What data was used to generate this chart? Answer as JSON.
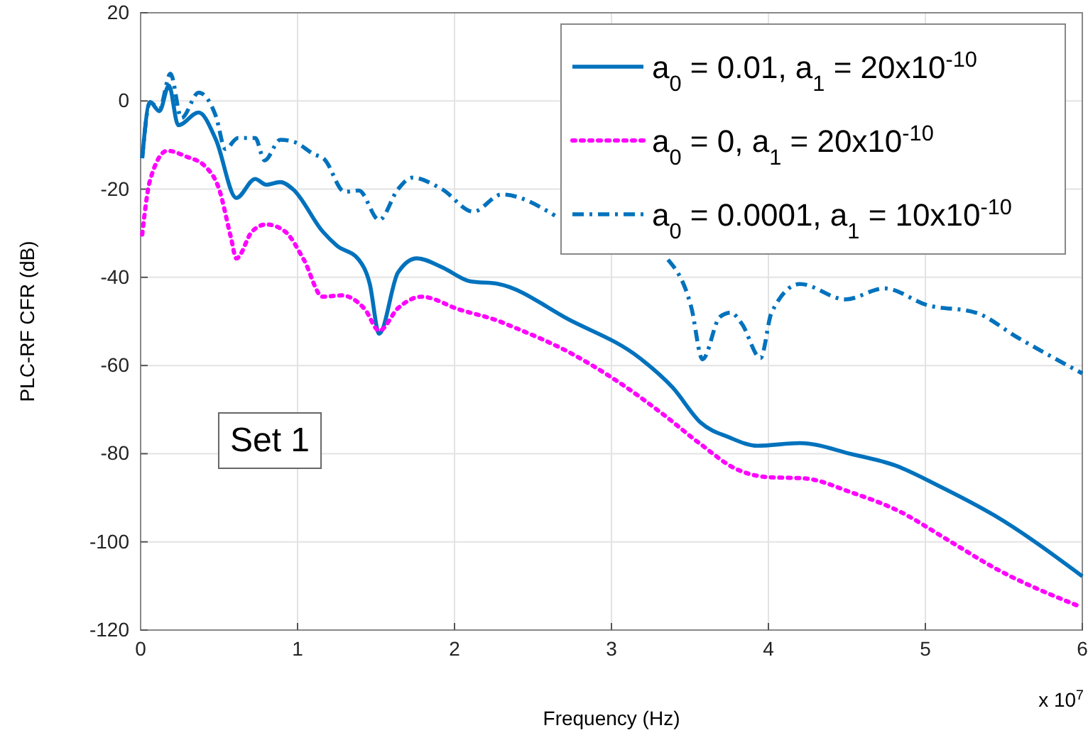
{
  "chart_data": {
    "type": "line",
    "xlabel": "Frequency (Hz)",
    "ylabel": "PLC-RF CFR (dB)",
    "xlim": [
      0,
      6
    ],
    "ylim": [
      -120,
      20
    ],
    "xticks": [
      0,
      1,
      2,
      3,
      4,
      5,
      6
    ],
    "yticks": [
      -120,
      -100,
      -80,
      -60,
      -40,
      -20,
      0,
      20
    ],
    "grid": true,
    "legend": "top right",
    "annotations": [
      "Set 1",
      "x 10$^{7}$"
    ],
    "series": [
      {
        "name": "a$_{0}$ = 0.01, a$_{1}$ = 20x10$^{-10}$",
        "color": "#0072bd",
        "line_style": "solid",
        "x": [
          0.01,
          0.06,
          0.12,
          0.18,
          0.24,
          0.37,
          0.48,
          0.61,
          0.73,
          0.8,
          0.89,
          0.97,
          1.16,
          1.25,
          1.39,
          1.46,
          1.52,
          1.64,
          1.76,
          1.92,
          2.1,
          2.28,
          2.73,
          3.18,
          3.39,
          3.57,
          3.75,
          3.93,
          4.2,
          4.53,
          4.81,
          5.08,
          5.44,
          6.0
        ],
        "values": [
          -13,
          -0.3,
          -2.3,
          3.5,
          -5.5,
          -2.6,
          -8.8,
          -22,
          -17.7,
          -19,
          -18.4,
          -20,
          -29.6,
          -32.8,
          -36,
          -41.5,
          -52.8,
          -38.9,
          -35.7,
          -37.7,
          -40.9,
          -41.5,
          -49.6,
          -58.3,
          -65,
          -73,
          -76.3,
          -78.2,
          -77.6,
          -80.1,
          -82.7,
          -87.2,
          -94,
          -107.8
        ]
      },
      {
        "name": "a$_{0}$ = 0, a$_{1}$ = 20x10$^{-10}$",
        "color": "#ff00ff",
        "line_style": "dotted",
        "x": [
          0.01,
          0.06,
          0.17,
          0.29,
          0.41,
          0.5,
          0.575,
          0.61,
          0.71,
          0.8,
          0.92,
          1.04,
          1.16,
          1.28,
          1.43,
          1.52,
          1.64,
          1.79,
          2.03,
          2.28,
          2.37,
          2.73,
          3.03,
          3.33,
          3.57,
          3.79,
          3.99,
          4.23,
          4.53,
          4.83,
          5.14,
          5.44,
          5.98
        ],
        "values": [
          -30.3,
          -18,
          -11.3,
          -12.6,
          -14.8,
          -20,
          -30.9,
          -35.7,
          -29.6,
          -28,
          -29.6,
          -36,
          -44.4,
          -44.1,
          -47.3,
          -52.1,
          -47,
          -44.4,
          -47.3,
          -49.9,
          -51.2,
          -57,
          -63.4,
          -71.1,
          -77.9,
          -83.4,
          -85.3,
          -85.6,
          -88.8,
          -93,
          -99.5,
          -105.9,
          -114.6
        ]
      },
      {
        "name": "a$_{0}$ = 0.0001, a$_{1}$ = 10x10$^{-10}$",
        "color": "#0072bd",
        "line_style": "dashed",
        "x": [
          0.01,
          0.06,
          0.12,
          0.19,
          0.26,
          0.37,
          0.48,
          0.54,
          0.62,
          0.73,
          0.79,
          0.89,
          0.98,
          1.1,
          1.17,
          1.3,
          1.39,
          1.52,
          1.64,
          1.73,
          1.92,
          2.12,
          2.3,
          2.64,
          3.0,
          3.36,
          3.51,
          3.58,
          3.69,
          3.76,
          3.83,
          3.95,
          4.02,
          4.2,
          4.49,
          4.74,
          5.01,
          5.32,
          5.59,
          6.0
        ],
        "values": [
          -13,
          -0.3,
          -1.8,
          6.2,
          -3.9,
          1.9,
          -3.5,
          -10.9,
          -8.4,
          -8.4,
          -13.5,
          -8.8,
          -9.3,
          -12,
          -13.2,
          -20.6,
          -20.3,
          -27,
          -20,
          -17.4,
          -20,
          -25.1,
          -21.2,
          -26,
          null,
          -36,
          -47,
          -58.6,
          -49,
          -48,
          -50.5,
          -58.3,
          -48,
          -41.5,
          -45,
          -42.5,
          -46.3,
          -48,
          -53.7,
          -61.8
        ]
      }
    ]
  }
}
